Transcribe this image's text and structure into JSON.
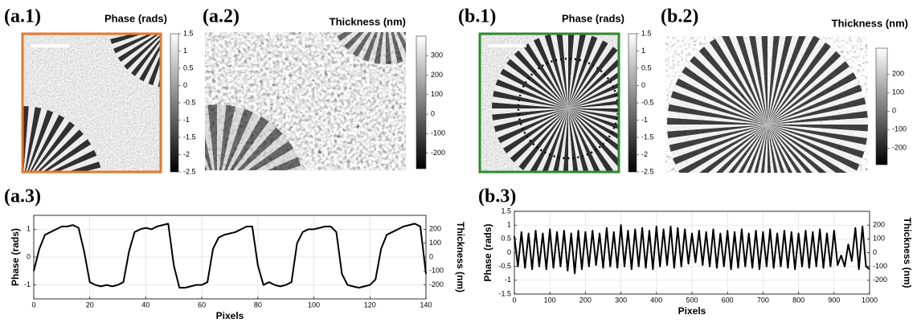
{
  "panels": [
    {
      "label": "(a.1)",
      "colorbar_title": "Phase (rads)",
      "clim": [
        -2.5,
        1.5
      ],
      "ticks": [
        1.5,
        1,
        0.5,
        0,
        -0.5,
        -1,
        -1.5,
        -2,
        -2.5
      ],
      "frame_color": "#e8762c"
    },
    {
      "label": "(a.2)",
      "colorbar_title": "Thickness (nm)",
      "clim": [
        -280,
        400
      ],
      "ticks": [
        300,
        200,
        100,
        0,
        -100,
        -200
      ]
    },
    {
      "label": "(b.1)",
      "colorbar_title": "Phase (rads)",
      "clim": [
        -2.5,
        1.5
      ],
      "ticks": [
        1.5,
        1,
        0.5,
        0,
        -0.5,
        -1,
        -1.5,
        -2,
        -2.5
      ],
      "frame_color": "#2e8b2e"
    },
    {
      "label": "(b.2)",
      "colorbar_title": "Thickness (nm)",
      "clim": [
        -290,
        340
      ],
      "ticks": [
        200,
        100,
        0,
        -100,
        -200
      ]
    }
  ],
  "chart_data": [
    {
      "type": "line",
      "label": "(a.3)",
      "xlabel": "Pixels",
      "ylabel": "Phase (rads)",
      "y2label": "Thickness (nm)",
      "x": [
        0,
        2,
        4,
        6,
        8,
        10,
        12,
        14,
        16,
        18,
        20,
        22,
        24,
        26,
        28,
        30,
        32,
        34,
        36,
        38,
        40,
        42,
        44,
        46,
        48,
        50,
        52,
        54,
        56,
        58,
        60,
        62,
        64,
        66,
        68,
        70,
        72,
        74,
        76,
        78,
        80,
        82,
        84,
        86,
        88,
        90,
        92,
        94,
        96,
        98,
        100,
        102,
        104,
        106,
        108,
        110,
        112,
        114,
        116,
        118,
        120,
        122,
        124,
        126,
        128,
        130,
        132,
        134,
        136,
        138,
        140
      ],
      "series": [
        {
          "color": "#000000",
          "values": [
            -0.5,
            0.3,
            0.8,
            0.9,
            1.0,
            1.1,
            1.1,
            1.15,
            1.05,
            0.2,
            -0.9,
            -1.0,
            -1.05,
            -1.0,
            -1.05,
            -1.0,
            -0.9,
            0.2,
            0.9,
            1.0,
            1.05,
            1.0,
            1.1,
            1.15,
            1.2,
            -0.3,
            -1.1,
            -1.1,
            -1.05,
            -1.0,
            -1.0,
            -0.9,
            0.3,
            0.7,
            0.8,
            0.85,
            0.9,
            1.0,
            1.1,
            1.1,
            -0.3,
            -1.0,
            -0.9,
            -1.0,
            -1.05,
            -1.0,
            -0.9,
            0.5,
            0.9,
            1.0,
            1.0,
            1.05,
            1.1,
            1.1,
            0.9,
            -0.6,
            -1.0,
            -1.05,
            -1.1,
            -1.05,
            -1.0,
            -0.8,
            0.3,
            0.8,
            0.9,
            1.0,
            1.1,
            1.15,
            1.2,
            1.1,
            -0.6
          ]
        }
      ],
      "xlim": [
        0,
        140
      ],
      "xticks": [
        0,
        20,
        40,
        60,
        80,
        100,
        120,
        140
      ],
      "ylim": [
        -1.5,
        1.5
      ],
      "yticks": [
        -1,
        0,
        1
      ],
      "y2lim": [
        -300,
        300
      ],
      "y2ticks": [
        200,
        100,
        0,
        -100,
        -200
      ],
      "grid": true
    },
    {
      "type": "line",
      "label": "(b.3)",
      "xlabel": "Pixels",
      "ylabel": "Phase (rads)",
      "y2label": "Thickness (nm)",
      "x": [
        0,
        10,
        20,
        30,
        40,
        50,
        60,
        70,
        80,
        90,
        100,
        110,
        120,
        130,
        140,
        150,
        160,
        170,
        180,
        190,
        200,
        210,
        220,
        230,
        240,
        250,
        260,
        270,
        280,
        290,
        300,
        310,
        320,
        330,
        340,
        350,
        360,
        370,
        380,
        390,
        400,
        410,
        420,
        430,
        440,
        450,
        460,
        470,
        480,
        490,
        500,
        510,
        520,
        530,
        540,
        550,
        560,
        570,
        580,
        590,
        600,
        610,
        620,
        630,
        640,
        650,
        660,
        670,
        680,
        690,
        700,
        710,
        720,
        730,
        740,
        750,
        760,
        770,
        780,
        790,
        800,
        810,
        820,
        830,
        840,
        850,
        860,
        870,
        880,
        890,
        900,
        910,
        920,
        930,
        940,
        950,
        960,
        970,
        980,
        990,
        1000
      ],
      "series": [
        {
          "color": "#000000",
          "values": [
            0.6,
            -0.5,
            0.75,
            -0.55,
            0.7,
            -0.6,
            0.8,
            -0.5,
            0.7,
            -0.6,
            0.85,
            -0.55,
            0.75,
            -0.5,
            0.8,
            -0.65,
            0.7,
            -0.75,
            0.8,
            -0.6,
            0.75,
            -0.5,
            0.8,
            -0.45,
            0.7,
            -0.55,
            0.9,
            -0.5,
            0.75,
            -0.55,
            1.0,
            -0.5,
            0.8,
            -0.6,
            0.85,
            -0.5,
            0.9,
            -0.55,
            0.8,
            -0.6,
            0.95,
            -0.5,
            0.85,
            -0.45,
            0.95,
            -0.55,
            0.9,
            -0.5,
            0.85,
            -0.4,
            0.7,
            -0.35,
            0.8,
            -0.45,
            0.75,
            -0.5,
            0.85,
            -0.55,
            0.7,
            -0.5,
            0.8,
            -0.6,
            0.75,
            -0.55,
            0.85,
            -0.5,
            0.7,
            -0.55,
            0.8,
            -0.6,
            0.75,
            -0.5,
            0.85,
            -0.55,
            0.7,
            -0.5,
            0.8,
            -0.55,
            0.75,
            -0.6,
            0.7,
            -0.5,
            0.8,
            -0.55,
            0.75,
            -0.5,
            0.85,
            -0.55,
            0.7,
            -0.5,
            0.8,
            -0.45,
            -0.1,
            -0.5,
            0.3,
            -0.3,
            0.9,
            -0.6,
            0.95,
            -0.5,
            -0.6
          ]
        }
      ],
      "xlim": [
        0,
        1000
      ],
      "xticks": [
        0,
        100,
        200,
        300,
        400,
        500,
        600,
        700,
        800,
        900,
        1000
      ],
      "ylim": [
        -1.5,
        1.5
      ],
      "yticks": [
        -1.5,
        -1,
        -0.5,
        0,
        0.5,
        1,
        1.5
      ],
      "y2lim": [
        -300,
        300
      ],
      "y2ticks": [
        200,
        100,
        0,
        -100,
        -200
      ],
      "grid": true
    }
  ]
}
